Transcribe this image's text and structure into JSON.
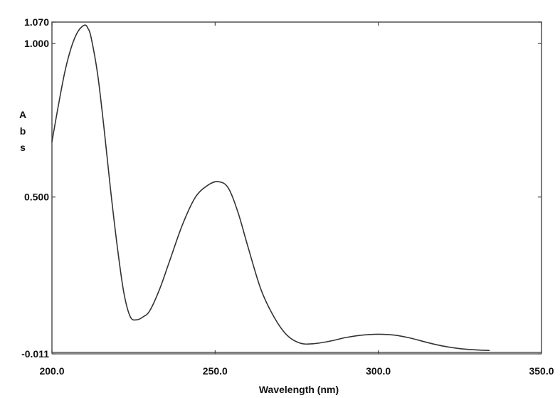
{
  "chart_data": {
    "type": "line",
    "title": "",
    "xlabel": "Wavelength (nm)",
    "ylabel": "A\nb\ns",
    "xlim": [
      200.0,
      350.0
    ],
    "ylim": [
      -0.011,
      1.07
    ],
    "x_ticks": [
      {
        "value": 200.0,
        "label": "200.0"
      },
      {
        "value": 250.0,
        "label": "250.0"
      },
      {
        "value": 300.0,
        "label": "300.0"
      },
      {
        "value": 350.0,
        "label": "350.0"
      }
    ],
    "y_ticks": [
      {
        "value": 1.07,
        "label": "1.070"
      },
      {
        "value": 1.0,
        "label": "1.000"
      },
      {
        "value": 0.5,
        "label": "0.500"
      },
      {
        "value": -0.011,
        "label": "-0.011"
      }
    ],
    "grid": false,
    "legend": "none",
    "series": [
      {
        "line_color": "#333333",
        "x": [
          200,
          202,
          204,
          206,
          208,
          210,
          211,
          212,
          214,
          216,
          218,
          220,
          222,
          224,
          226,
          228,
          230,
          233,
          236,
          240,
          244,
          248,
          251,
          254,
          257,
          260,
          264,
          268,
          272,
          276,
          280,
          285,
          290,
          295,
          300,
          305,
          310,
          315,
          320,
          325,
          330,
          334
        ],
        "y": [
          0.68,
          0.8,
          0.91,
          0.99,
          1.04,
          1.06,
          1.05,
          1.02,
          0.9,
          0.72,
          0.52,
          0.34,
          0.19,
          0.11,
          0.1,
          0.11,
          0.13,
          0.2,
          0.29,
          0.41,
          0.5,
          0.54,
          0.55,
          0.53,
          0.45,
          0.34,
          0.2,
          0.11,
          0.05,
          0.024,
          0.022,
          0.03,
          0.042,
          0.05,
          0.053,
          0.05,
          0.04,
          0.026,
          0.014,
          0.006,
          0.002,
          0.0
        ]
      }
    ]
  }
}
